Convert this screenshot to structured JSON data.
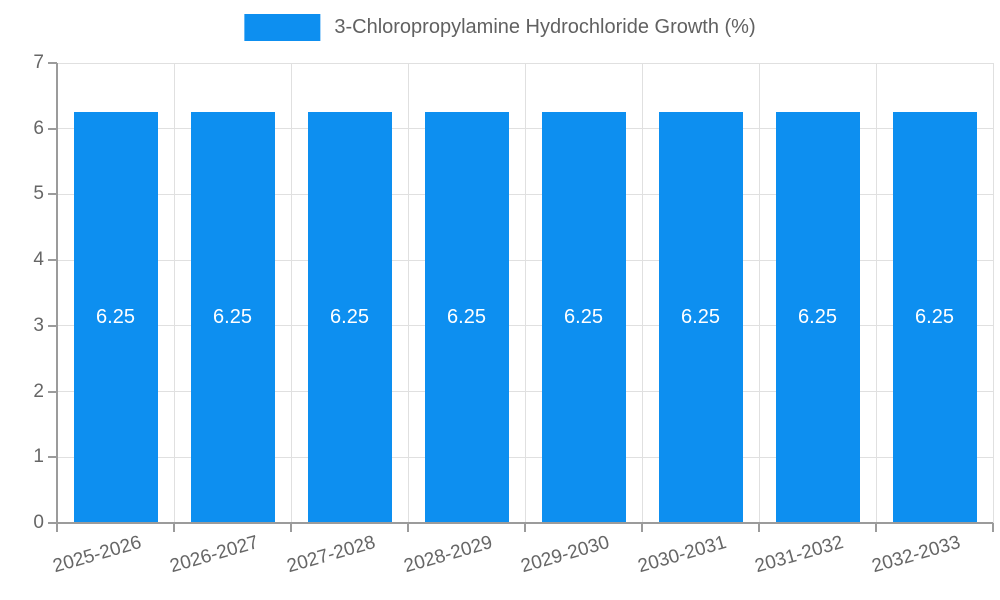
{
  "chart_data": {
    "type": "bar",
    "title": "3-Chloropropylamine Hydrochloride Growth (%)",
    "categories": [
      "2025-2026",
      "2026-2027",
      "2027-2028",
      "2028-2029",
      "2029-2030",
      "2030-2031",
      "2031-2032",
      "2032-2033"
    ],
    "values": [
      6.25,
      6.25,
      6.25,
      6.25,
      6.25,
      6.25,
      6.25,
      6.25
    ],
    "bar_value_labels": [
      "6.25",
      "6.25",
      "6.25",
      "6.25",
      "6.25",
      "6.25",
      "6.25",
      "6.25"
    ],
    "xlabel": "",
    "ylabel": "",
    "ylim": [
      0,
      7
    ],
    "yticks": [
      0,
      1,
      2,
      3,
      4,
      5,
      6,
      7
    ],
    "grid": true,
    "legend": {
      "position": "top",
      "label": "3-Chloropropylamine Hydrochloride Growth (%)"
    },
    "colors": {
      "bar": "#0d8ff0",
      "bar_label_text": "#ffffff",
      "grid_line": "#e0e0e0",
      "axis_line": "#9b9b9b",
      "tick_text": "#666666",
      "legend_text": "#616161"
    }
  }
}
